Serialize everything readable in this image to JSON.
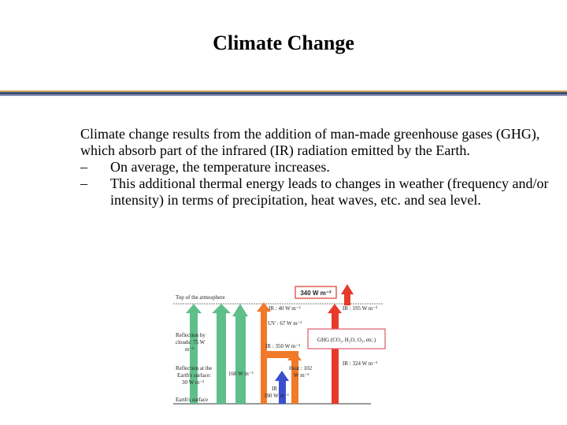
{
  "slide": {
    "title": "Climate Change",
    "intro": "Climate change results from the addition of man-made greenhouse gases (GHG), which absorb part of the infrared (IR) radiation emitted by the Earth.",
    "bullets": [
      {
        "dash": "–",
        "text": "On average, the temperature increases."
      },
      {
        "dash": "–",
        "text": "This additional thermal energy leads to changes in weather (frequency and/or intensity) in terms of precipitation, heat waves, etc. and sea level."
      }
    ]
  },
  "diagram": {
    "top_label": "Top of the atmosphere",
    "incoming_box": "340 W m⁻²",
    "reflection_clouds": [
      "Reflection by",
      "clouds: 75 W",
      "m⁻²"
    ],
    "reflection_surface": [
      "Reflection at the",
      "Earth's surface:",
      "30 W m⁻²"
    ],
    "earth_surface": "Earth's surface",
    "absorbed_surface": "168 W m⁻²",
    "ir_out_40": "IR : 40 W m⁻²",
    "ir_out_195": "IR : 195 W m⁻²",
    "uv_67": "UV : 67 W m⁻²",
    "ir_350": "IR : 350 W m⁻²",
    "ghg": "GHG (CO₂, H₂O, O₃, etc.)",
    "ir_324": "IR : 324 W m⁻²",
    "heat_102": [
      "Heat : 102",
      "W m⁻²"
    ],
    "ir_390": [
      "IR :",
      "390 W m⁻²"
    ],
    "colors": {
      "green": "#5fbf8a",
      "orange": "#f07a2a",
      "red": "#e83a2a",
      "blue": "#3a4fd0",
      "ghg_border": "#e05a6a"
    }
  }
}
